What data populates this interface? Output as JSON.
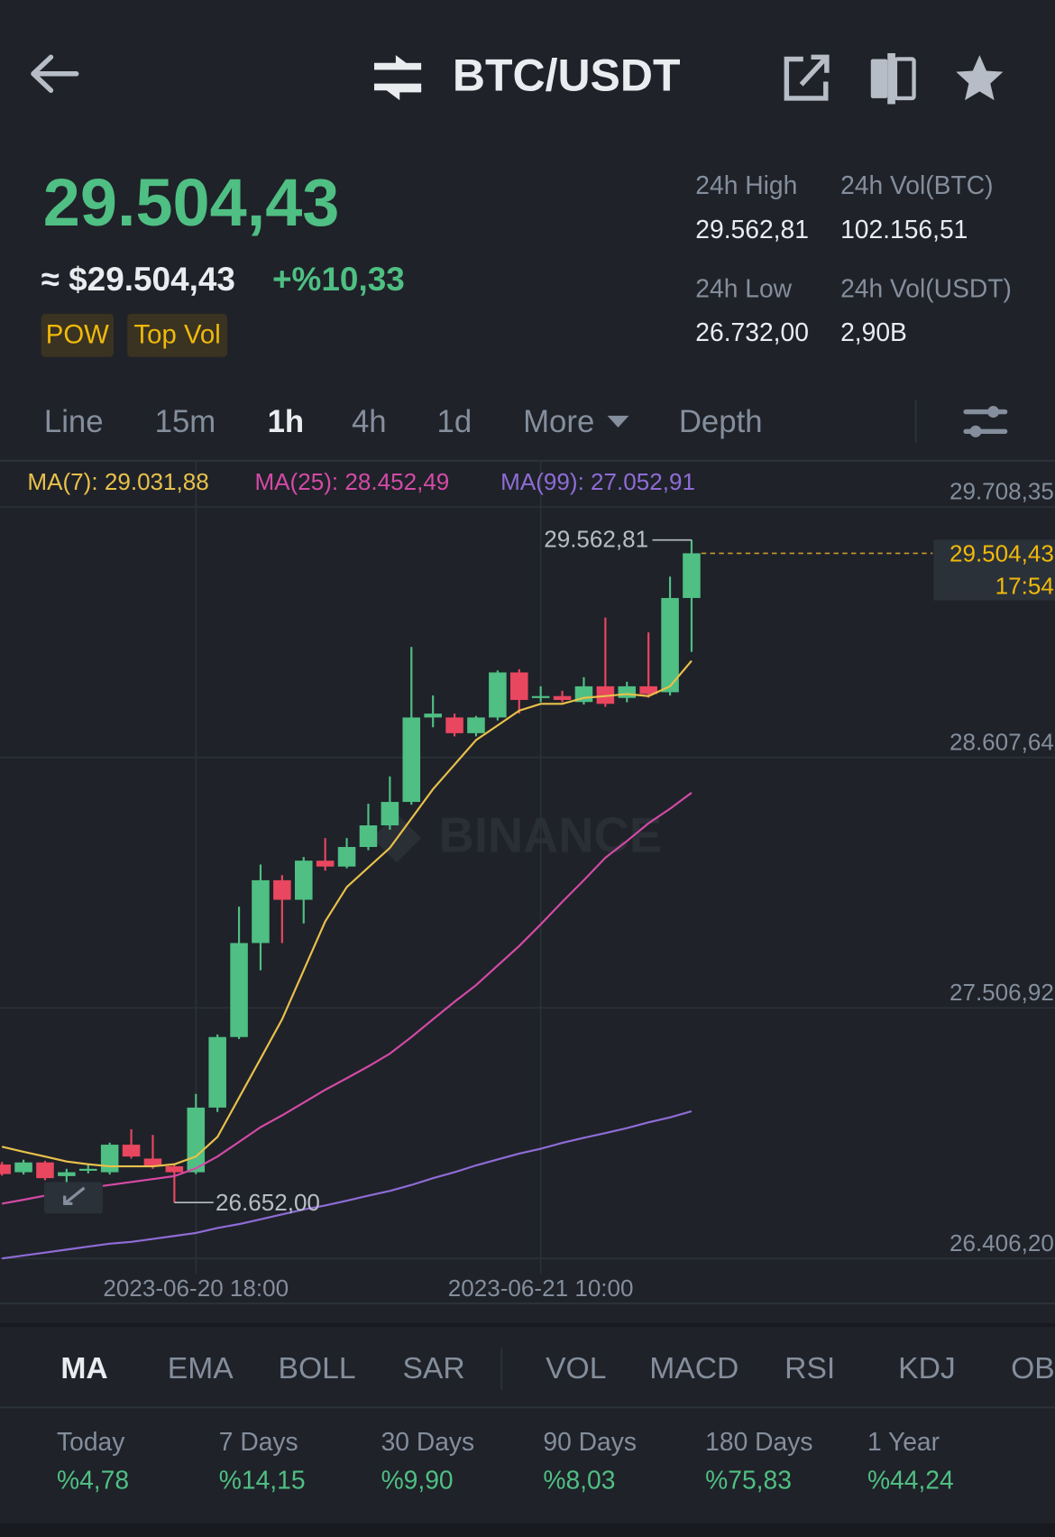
{
  "header": {
    "title": "BTC/USDT"
  },
  "ticker": {
    "price": "29.504,43",
    "fiat_price": "≈ $29.504,43",
    "change": "+%10,33",
    "tags": [
      "POW",
      "Top Vol"
    ],
    "stats": [
      {
        "label": "24h High",
        "value": "29.562,81"
      },
      {
        "label": "24h Vol(BTC)",
        "value": "102.156,51"
      },
      {
        "label": "24h Low",
        "value": "26.732,00"
      },
      {
        "label": "24h Vol(USDT)",
        "value": "2,90B"
      }
    ]
  },
  "intervals": [
    "Line",
    "15m",
    "1h",
    "4h",
    "1d",
    "More",
    "Depth"
  ],
  "chart_data": {
    "type": "candlestick",
    "watermark": "BINANCE",
    "up_color": "#4fbf83",
    "down_color": "#e9465f",
    "candles": {
      "open": [
        26819,
        26785,
        26828,
        26768,
        26794,
        26785,
        26906,
        26845,
        26811,
        26785,
        27069,
        27379,
        27792,
        28068,
        27982,
        28154,
        28128,
        28214,
        28309,
        28412,
        28783,
        28783,
        28714,
        28783,
        28981,
        28870,
        28877,
        28851,
        28920,
        28869,
        28920,
        28894,
        29308
      ],
      "high": [
        26830,
        26840,
        26835,
        26800,
        26820,
        26915,
        26974,
        26949,
        26820,
        27129,
        27390,
        27952,
        28137,
        28090,
        28170,
        28253,
        28253,
        28404,
        28524,
        29093,
        28880,
        28800,
        28790,
        28990,
        28995,
        28920,
        28900,
        28960,
        29222,
        28940,
        29157,
        29402,
        29562.81
      ],
      "low": [
        26770,
        26775,
        26750,
        26740,
        26780,
        26775,
        26845,
        26800,
        26652,
        26777,
        27050,
        27370,
        27672,
        27792,
        27878,
        28110,
        28120,
        28200,
        28290,
        28400,
        28740,
        28700,
        28700,
        28770,
        28800,
        28850,
        28850,
        28840,
        28830,
        28850,
        28870,
        28880,
        29071
      ],
      "close": [
        26777,
        26828,
        26759,
        26785,
        26800,
        26906,
        26854,
        26811,
        26785,
        27069,
        27379,
        27792,
        28068,
        27982,
        28154,
        28128,
        28214,
        28309,
        28412,
        28783,
        28800,
        28714,
        28783,
        28981,
        28860,
        28877,
        28860,
        28920,
        28843,
        28920,
        28886,
        29308,
        29504.43
      ]
    },
    "series": [
      {
        "name": "MA(7): 29.031,88",
        "color": "#e9c14a",
        "values": [
          26897,
          26875,
          26854,
          26832,
          26820,
          26811,
          26811,
          26811,
          26820,
          26854,
          26940,
          27112,
          27284,
          27457,
          27672,
          27887,
          28038,
          28124,
          28210,
          28339,
          28468,
          28576,
          28684,
          28748,
          28813,
          28843,
          28843,
          28869,
          28877,
          28886,
          28877,
          28920,
          29031.88
        ]
      },
      {
        "name": "MA(25): 28.452,49",
        "color": "#d44aa6",
        "values": [
          26647,
          26664,
          26682,
          26699,
          26716,
          26729,
          26742,
          26755,
          26768,
          26802,
          26854,
          26918,
          26983,
          27035,
          27091,
          27147,
          27198,
          27250,
          27306,
          27379,
          27457,
          27534,
          27607,
          27693,
          27779,
          27874,
          27973,
          28068,
          28167,
          28240,
          28318,
          28382,
          28452.49
        ]
      },
      {
        "name": "MA(99): 27.052,91",
        "color": "#8f6cd6",
        "values": [
          26406,
          26419,
          26432,
          26445,
          26458,
          26471,
          26479,
          26492,
          26505,
          26518,
          26540,
          26557,
          26578,
          26600,
          26621,
          26639,
          26660,
          26682,
          26703,
          26729,
          26759,
          26785,
          26815,
          26841,
          26867,
          26888,
          26914,
          26936,
          26957,
          26979,
          27004,
          27026,
          27052.91
        ]
      }
    ],
    "yticks": [
      {
        "value": 29708.35,
        "label": "29.708,35"
      },
      {
        "value": 28607.64,
        "label": "28.607,64"
      },
      {
        "value": 27506.92,
        "label": "27.506,92"
      },
      {
        "value": 26406.2,
        "label": "26.406,20"
      }
    ],
    "xticks": [
      {
        "value": 9,
        "label": "2023-06-20 18:00"
      },
      {
        "value": 25,
        "label": "2023-06-21 10:00"
      }
    ],
    "grid": true,
    "high_marker": {
      "value": 29562.81,
      "label": "29.562,81"
    },
    "low_marker": {
      "value": 26652.0,
      "label": "26.652,00"
    },
    "last_price": {
      "value": 29504.43,
      "label": "29.504,43"
    },
    "countdown": "17:54"
  },
  "indicators": [
    "MA",
    "EMA",
    "BOLL",
    "SAR",
    "VOL",
    "MACD",
    "RSI",
    "KDJ",
    "OB"
  ],
  "performance": [
    {
      "label": "Today",
      "value": "%4,78"
    },
    {
      "label": "7 Days",
      "value": "%14,15"
    },
    {
      "label": "30 Days",
      "value": "%9,90"
    },
    {
      "label": "90 Days",
      "value": "%8,03"
    },
    {
      "label": "180 Days",
      "value": "%75,83"
    },
    {
      "label": "1 Year",
      "value": "%44,24"
    }
  ]
}
